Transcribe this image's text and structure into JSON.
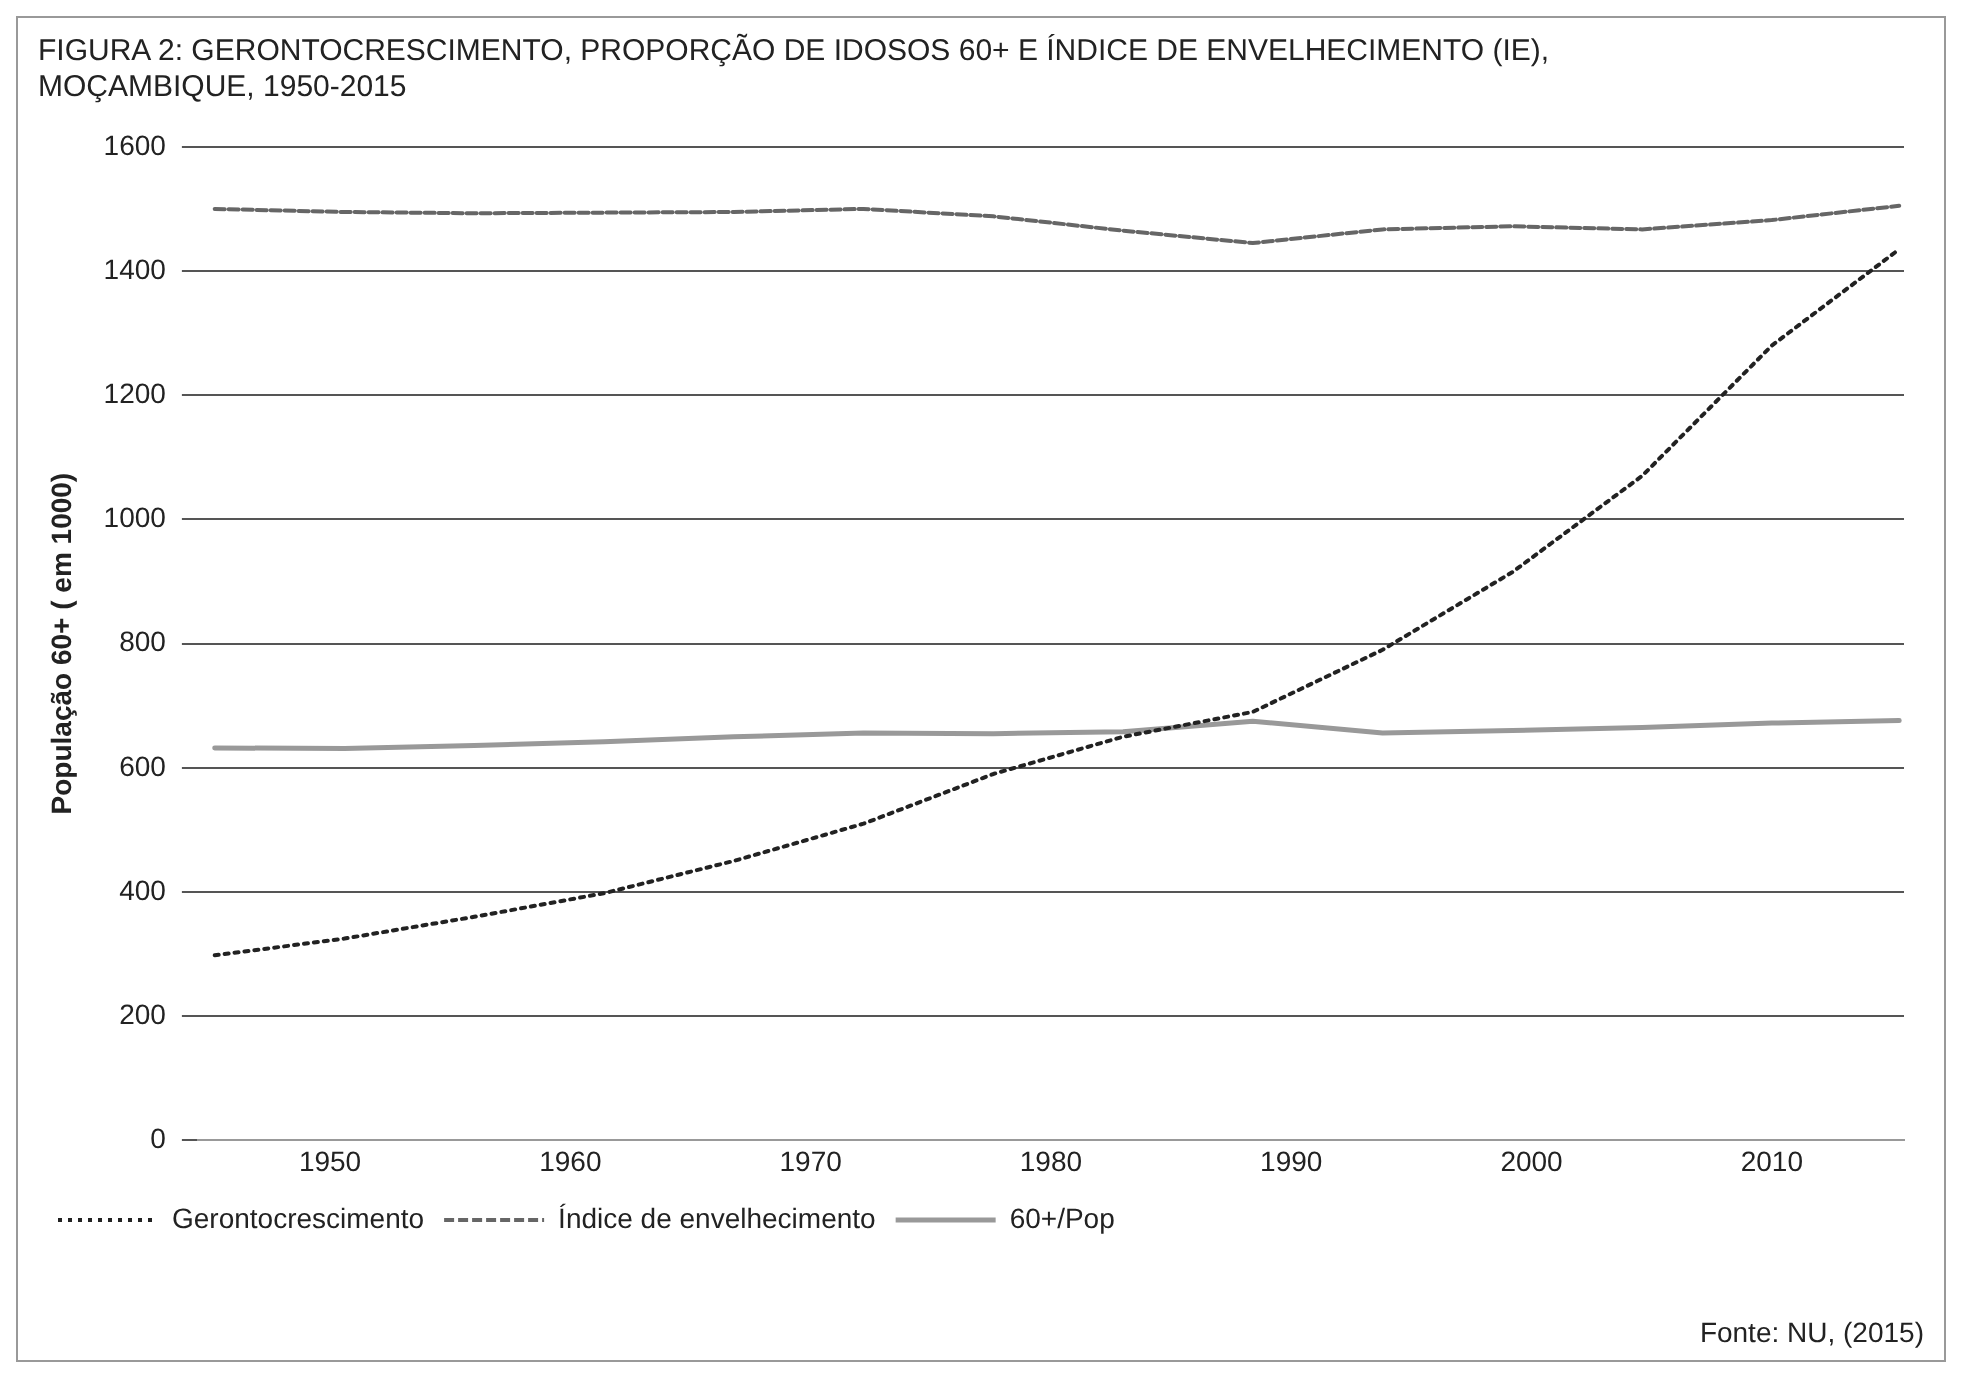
{
  "chart_data": {
    "type": "line",
    "title": "FIGURA 2: GERONTOCRESCIMENTO, PROPORÇÃO DE IDOSOS 60+ E ÍNDICE DE ENVELHECIMENTO (IE), MOÇAMBIQUE, 1950-2015",
    "ylabel": "População 60+ ( em 1000)",
    "xlim": [
      1944.5,
      2015.5
    ],
    "xticks": [
      1950,
      1960,
      1970,
      1980,
      1990,
      2000,
      2010
    ],
    "ylim": [
      0,
      1600
    ],
    "yticks": [
      0,
      200,
      400,
      600,
      800,
      1000,
      1200,
      1400,
      1600
    ],
    "grid": "y",
    "legend": "bottom",
    "marker": "none",
    "annotations": [
      "Fonte: NU, (2015)"
    ],
    "x": [
      1945.2,
      1950.6,
      1956,
      1961.4,
      1966.8,
      1972.2,
      1977.6,
      1983,
      1988.4,
      1993.8,
      1999.2,
      2004.6,
      2010,
      2015.3
    ],
    "series": [
      {
        "name": "Gerontocrescimento",
        "color": "#222222",
        "line_style": "dotted",
        "values": [
          298,
          325,
          360,
          398,
          450,
          510,
          590,
          650,
          690,
          790,
          915,
          1070,
          1280,
          1435
        ]
      },
      {
        "name": "Índice de envelhecimento",
        "color": "#666666",
        "line_style": "dashed",
        "values": [
          1500,
          1495,
          1493,
          1494,
          1495,
          1500,
          1488,
          1465,
          1445,
          1467,
          1472,
          1467,
          1482,
          1505
        ]
      },
      {
        "name": "60+/Pop",
        "color": "#999999",
        "line_style": "solid",
        "values": [
          632,
          631,
          636,
          642,
          650,
          656,
          655,
          658,
          675,
          656,
          660,
          665,
          672,
          676
        ]
      }
    ]
  }
}
